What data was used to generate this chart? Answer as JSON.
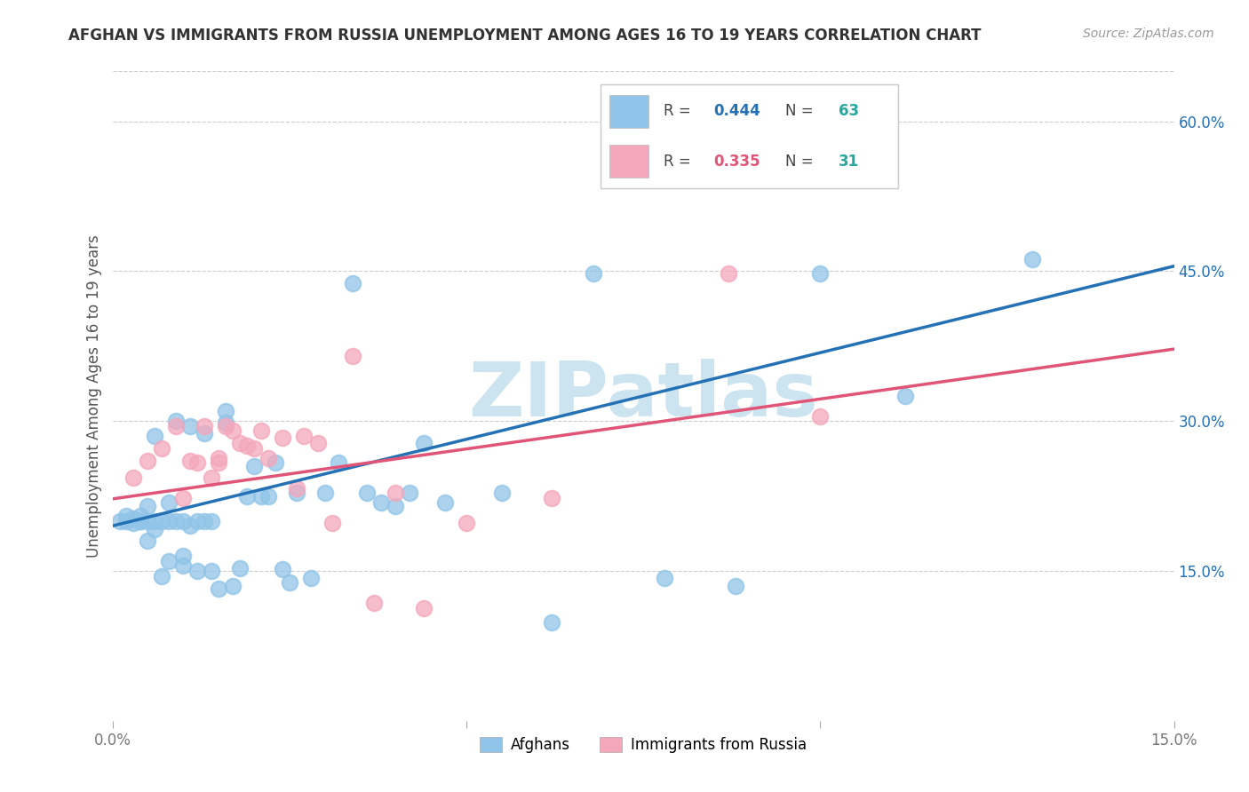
{
  "title": "AFGHAN VS IMMIGRANTS FROM RUSSIA UNEMPLOYMENT AMONG AGES 16 TO 19 YEARS CORRELATION CHART",
  "source": "Source: ZipAtlas.com",
  "ylabel": "Unemployment Among Ages 16 to 19 years",
  "xlim": [
    0.0,
    0.15
  ],
  "ylim": [
    0.0,
    0.65
  ],
  "xtick_vals": [
    0.0,
    0.05,
    0.1,
    0.15
  ],
  "xtick_labels": [
    "0.0%",
    "",
    "",
    "15.0%"
  ],
  "ytick_vals_right": [
    0.15,
    0.3,
    0.45,
    0.6
  ],
  "ytick_labels_right": [
    "15.0%",
    "30.0%",
    "45.0%",
    "60.0%"
  ],
  "legend_r1": "0.444",
  "legend_n1": "63",
  "legend_r2": "0.335",
  "legend_n2": "31",
  "blue_scatter_color": "#90c4e8",
  "pink_scatter_color": "#f4a7bb",
  "blue_line_color": "#2471b5",
  "pink_line_color": "#e05577",
  "n_color": "#27a89c",
  "watermark": "ZIPatlas",
  "watermark_color": "#cce3f0",
  "grid_color": "#cccccc",
  "title_color": "#333333",
  "source_color": "#999999",
  "ylabel_color": "#555555",
  "tick_color": "#777777",
  "afghans_x": [
    0.001,
    0.002,
    0.002,
    0.003,
    0.003,
    0.004,
    0.004,
    0.004,
    0.005,
    0.005,
    0.005,
    0.006,
    0.006,
    0.006,
    0.007,
    0.007,
    0.008,
    0.008,
    0.008,
    0.009,
    0.009,
    0.01,
    0.01,
    0.01,
    0.011,
    0.011,
    0.012,
    0.012,
    0.013,
    0.013,
    0.014,
    0.014,
    0.015,
    0.016,
    0.016,
    0.017,
    0.018,
    0.019,
    0.02,
    0.021,
    0.022,
    0.023,
    0.024,
    0.025,
    0.026,
    0.028,
    0.03,
    0.032,
    0.034,
    0.036,
    0.038,
    0.04,
    0.042,
    0.044,
    0.047,
    0.055,
    0.062,
    0.068,
    0.078,
    0.088,
    0.1,
    0.112,
    0.13
  ],
  "afghans_y": [
    0.2,
    0.2,
    0.205,
    0.198,
    0.202,
    0.2,
    0.2,
    0.205,
    0.18,
    0.2,
    0.215,
    0.192,
    0.285,
    0.2,
    0.2,
    0.145,
    0.16,
    0.2,
    0.218,
    0.2,
    0.3,
    0.2,
    0.165,
    0.155,
    0.195,
    0.295,
    0.15,
    0.2,
    0.2,
    0.288,
    0.15,
    0.2,
    0.132,
    0.298,
    0.31,
    0.135,
    0.153,
    0.225,
    0.255,
    0.225,
    0.225,
    0.258,
    0.152,
    0.138,
    0.228,
    0.143,
    0.228,
    0.258,
    0.438,
    0.228,
    0.218,
    0.215,
    0.228,
    0.278,
    0.218,
    0.228,
    0.098,
    0.448,
    0.143,
    0.135,
    0.448,
    0.325,
    0.462
  ],
  "russia_x": [
    0.003,
    0.005,
    0.007,
    0.009,
    0.01,
    0.011,
    0.012,
    0.013,
    0.014,
    0.015,
    0.015,
    0.016,
    0.017,
    0.018,
    0.019,
    0.02,
    0.021,
    0.022,
    0.024,
    0.026,
    0.027,
    0.029,
    0.031,
    0.034,
    0.037,
    0.04,
    0.044,
    0.05,
    0.062,
    0.087,
    0.1
  ],
  "russia_y": [
    0.243,
    0.26,
    0.273,
    0.295,
    0.223,
    0.26,
    0.258,
    0.295,
    0.243,
    0.263,
    0.258,
    0.295,
    0.29,
    0.278,
    0.275,
    0.273,
    0.29,
    0.263,
    0.283,
    0.233,
    0.285,
    0.278,
    0.198,
    0.365,
    0.118,
    0.228,
    0.113,
    0.198,
    0.223,
    0.448,
    0.305
  ],
  "blue_line_x0": 0.0,
  "blue_line_y0": 0.195,
  "blue_line_x1": 0.15,
  "blue_line_y1": 0.455,
  "pink_line_x0": 0.0,
  "pink_line_y0": 0.222,
  "pink_line_x1": 0.15,
  "pink_line_y1": 0.372
}
